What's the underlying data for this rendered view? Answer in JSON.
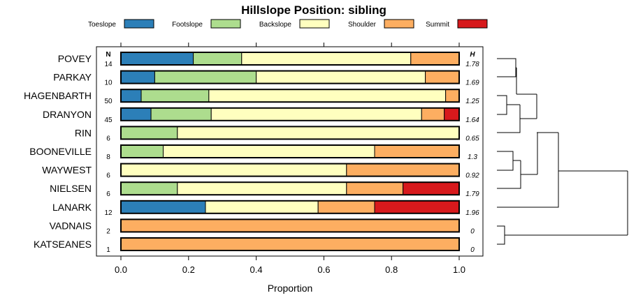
{
  "chart_data": {
    "type": "bar",
    "orientation": "horizontal",
    "stacked": "proportion",
    "title": "Hillslope Position: sibling",
    "xlabel": "Proportion",
    "ylabel": "",
    "xlim": [
      0,
      1
    ],
    "x_ticks": [
      0.0,
      0.2,
      0.4,
      0.6,
      0.8,
      1.0
    ],
    "x_tick_labels": [
      "0.0",
      "0.2",
      "0.4",
      "0.6",
      "0.8",
      "1.0"
    ],
    "legend_position": "top",
    "n_header": "N",
    "h_header": "H",
    "series": [
      {
        "name": "Toeslope",
        "color": "#2c7fb8"
      },
      {
        "name": "Footslope",
        "color": "#addd8e"
      },
      {
        "name": "Backslope",
        "color": "#ffffbf"
      },
      {
        "name": "Shoulder",
        "color": "#fdae61"
      },
      {
        "name": "Summit",
        "color": "#d7191c"
      }
    ],
    "rows": [
      {
        "name": "POVEY",
        "n": "14",
        "h": "1.78",
        "values": [
          0.214,
          0.143,
          0.5,
          0.143,
          0
        ]
      },
      {
        "name": "PARKAY",
        "n": "10",
        "h": "1.69",
        "values": [
          0.1,
          0.3,
          0.5,
          0.1,
          0
        ]
      },
      {
        "name": "HAGENBARTH",
        "n": "50",
        "h": "1.25",
        "values": [
          0.06,
          0.2,
          0.7,
          0.04,
          0
        ]
      },
      {
        "name": "DRANYON",
        "n": "45",
        "h": "1.64",
        "values": [
          0.089,
          0.178,
          0.622,
          0.067,
          0.044
        ]
      },
      {
        "name": "RIN",
        "n": "6",
        "h": "0.65",
        "values": [
          0,
          0.167,
          0.833,
          0,
          0
        ]
      },
      {
        "name": "BOONEVILLE",
        "n": "8",
        "h": "1.3",
        "values": [
          0,
          0.125,
          0.625,
          0.25,
          0
        ]
      },
      {
        "name": "WAYWEST",
        "n": "6",
        "h": "0.92",
        "values": [
          0,
          0,
          0.667,
          0.333,
          0
        ]
      },
      {
        "name": "NIELSEN",
        "n": "6",
        "h": "1.79",
        "values": [
          0,
          0.167,
          0.5,
          0.167,
          0.167
        ]
      },
      {
        "name": "LANARK",
        "n": "12",
        "h": "1.96",
        "values": [
          0.25,
          0,
          0.333,
          0.167,
          0.25
        ]
      },
      {
        "name": "VADNAIS",
        "n": "2",
        "h": "0",
        "values": [
          0,
          0,
          0,
          1,
          0
        ]
      },
      {
        "name": "KATSEANES",
        "n": "1",
        "h": "0",
        "values": [
          0,
          0,
          0,
          1,
          0
        ]
      }
    ],
    "dendrogram": "hierarchical clustering of rows"
  }
}
